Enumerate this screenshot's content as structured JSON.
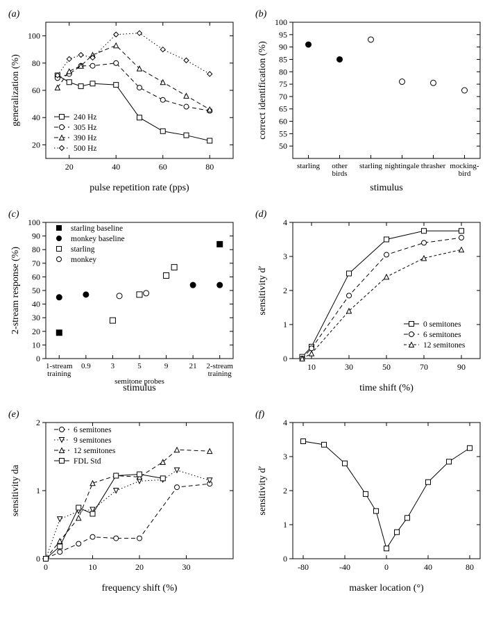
{
  "figure": {
    "font_family": "Times New Roman, serif",
    "background_color": "#ffffff",
    "axis_color": "#000000",
    "axis_width": 1,
    "tick_len": 5,
    "panel_labels": [
      "(a)",
      "(b)",
      "(c)",
      "(d)",
      "(e)",
      "(f)"
    ],
    "panel_label_fontsize": 14,
    "panel_label_style": "italic",
    "axis_label_fontsize": 14,
    "tick_label_fontsize": 12
  },
  "a": {
    "type": "line-scatter",
    "xlabel": "pulse repetition rate (pps)",
    "ylabel": "generalization (%)",
    "xlim": [
      10,
      90
    ],
    "ylim": [
      10,
      110
    ],
    "xticks": [
      20,
      40,
      60,
      80
    ],
    "yticks": [
      20,
      40,
      60,
      80,
      100
    ],
    "legend_pos": "lower-left",
    "series": [
      {
        "label": "240 Hz",
        "marker": "square",
        "color": "#000000",
        "dash": "solid",
        "x": [
          15,
          20,
          25,
          30,
          40,
          50,
          60,
          70,
          80
        ],
        "y": [
          71,
          66,
          63,
          65,
          64,
          40,
          30,
          27,
          23
        ]
      },
      {
        "label": "305 Hz",
        "marker": "circle",
        "color": "#000000",
        "dash": "dash",
        "x": [
          15,
          20,
          25,
          30,
          40,
          50,
          60,
          70,
          80
        ],
        "y": [
          69,
          72,
          78,
          78,
          80,
          62,
          53,
          48,
          45
        ]
      },
      {
        "label": "390 Hz",
        "marker": "triangle",
        "color": "#000000",
        "dash": "dash",
        "x": [
          15,
          20,
          25,
          30,
          40,
          50,
          60,
          70,
          80
        ],
        "y": [
          62,
          74,
          78,
          86,
          93,
          76,
          66,
          56,
          46
        ]
      },
      {
        "label": "500 Hz",
        "marker": "diamond",
        "color": "#000000",
        "dash": "dot",
        "x": [
          15,
          20,
          25,
          30,
          40,
          50,
          60,
          70,
          80
        ],
        "y": [
          71,
          83,
          86,
          84,
          101,
          102,
          90,
          82,
          72
        ]
      }
    ]
  },
  "b": {
    "type": "scatter",
    "xlabel": "stimulus",
    "ylabel": "correct identification (%)",
    "ylim": [
      45,
      100
    ],
    "yticks": [
      50,
      55,
      60,
      65,
      70,
      75,
      80,
      85,
      90,
      95,
      100
    ],
    "xcategories": [
      "starling",
      "other\nbirds",
      "starling",
      "nightingale",
      "thrasher",
      "mocking-\nbird"
    ],
    "points": [
      {
        "x": 0,
        "y": 91,
        "fill": "filled"
      },
      {
        "x": 1,
        "y": 85,
        "fill": "filled"
      },
      {
        "x": 2,
        "y": 93,
        "fill": "open"
      },
      {
        "x": 3,
        "y": 76,
        "fill": "open"
      },
      {
        "x": 4,
        "y": 75.5,
        "fill": "open"
      },
      {
        "x": 5,
        "y": 72.5,
        "fill": "open"
      }
    ],
    "marker": "circle"
  },
  "c": {
    "type": "scatter",
    "xlabel": "stimulus",
    "ylabel": "2-stream response (%)",
    "ylim": [
      0,
      100
    ],
    "yticks": [
      0,
      10,
      20,
      30,
      40,
      50,
      60,
      70,
      80,
      90,
      100
    ],
    "xcategories": [
      "1-stream\ntraining",
      "0.9",
      "3",
      "5",
      "9",
      "21",
      "2-stream\ntraining"
    ],
    "subheader": "semitone probes",
    "legend": [
      {
        "marker": "filled-square",
        "label": "starling baseline"
      },
      {
        "marker": "filled-circle",
        "label": "monkey baseline"
      },
      {
        "marker": "open-square",
        "label": "starling"
      },
      {
        "marker": "open-circle",
        "label": "monkey"
      }
    ],
    "points": [
      {
        "x": 0,
        "y": 45,
        "marker": "filled-circle"
      },
      {
        "x": 0,
        "y": 19,
        "marker": "filled-square"
      },
      {
        "x": 1,
        "y": 47,
        "marker": "filled-circle"
      },
      {
        "x": 2,
        "y": 28,
        "marker": "open-square"
      },
      {
        "x": 2.25,
        "y": 46,
        "marker": "open-circle"
      },
      {
        "x": 3,
        "y": 47,
        "marker": "open-square"
      },
      {
        "x": 3.25,
        "y": 48,
        "marker": "open-circle"
      },
      {
        "x": 4,
        "y": 61,
        "marker": "open-square"
      },
      {
        "x": 4.3,
        "y": 67,
        "marker": "open-square"
      },
      {
        "x": 5,
        "y": 54,
        "marker": "filled-circle"
      },
      {
        "x": 6,
        "y": 84,
        "marker": "filled-square"
      },
      {
        "x": 6,
        "y": 54,
        "marker": "filled-circle"
      }
    ]
  },
  "d": {
    "type": "line-scatter",
    "xlabel": "time shift (%)",
    "ylabel": "sensitivity d′",
    "xlim": [
      0,
      100
    ],
    "ylim": [
      0,
      4
    ],
    "xticks": [
      10,
      30,
      50,
      70,
      90
    ],
    "yticks": [
      0,
      1,
      2,
      3,
      4
    ],
    "legend_pos": "lower-right",
    "series": [
      {
        "label": "0 semitones",
        "marker": "square",
        "dash": "solid",
        "x": [
          5,
          10,
          30,
          50,
          70,
          90
        ],
        "y": [
          0.05,
          0.35,
          2.5,
          3.5,
          3.75,
          3.75
        ]
      },
      {
        "label": "6 semitones",
        "marker": "circle",
        "dash": "dash",
        "x": [
          5,
          10,
          30,
          50,
          70,
          90
        ],
        "y": [
          0.0,
          0.3,
          1.85,
          3.05,
          3.4,
          3.55
        ]
      },
      {
        "label": "12 semitones",
        "marker": "triangle",
        "dash": "dash-short",
        "x": [
          5,
          10,
          30,
          50,
          70,
          90
        ],
        "y": [
          0.0,
          0.15,
          1.4,
          2.4,
          2.95,
          3.2
        ]
      }
    ]
  },
  "e": {
    "type": "line-scatter",
    "xlabel": "frequency shift (%)",
    "ylabel": "sensitivity da",
    "xlim": [
      0,
      40
    ],
    "ylim": [
      0,
      2
    ],
    "xticks": [
      0,
      10,
      20,
      30
    ],
    "yticks": [
      0,
      1,
      2
    ],
    "legend_pos": "upper-left",
    "series": [
      {
        "label": "6 semitones",
        "marker": "circle",
        "dash": "dash",
        "x": [
          0,
          3,
          7,
          10,
          15,
          20,
          28,
          35
        ],
        "y": [
          0,
          0.1,
          0.22,
          0.32,
          0.3,
          0.3,
          1.05,
          1.1
        ]
      },
      {
        "label": "9 semitones",
        "marker": "triangle-down",
        "dash": "dot",
        "x": [
          0,
          3,
          7,
          10,
          15,
          20,
          25,
          28,
          35
        ],
        "y": [
          0,
          0.58,
          0.7,
          0.72,
          1.0,
          1.14,
          1.16,
          1.3,
          1.15
        ]
      },
      {
        "label": "12 semitones",
        "marker": "triangle",
        "dash": "dash",
        "x": [
          0,
          3,
          7,
          10,
          15,
          20,
          25,
          28,
          35
        ],
        "y": [
          0,
          0.26,
          0.6,
          1.11,
          1.22,
          1.2,
          1.42,
          1.6,
          1.58
        ]
      },
      {
        "label": "FDL Std",
        "marker": "square",
        "dash": "solid",
        "x": [
          0,
          3,
          7,
          10,
          15,
          20,
          25
        ],
        "y": [
          0,
          0.18,
          0.75,
          0.66,
          1.22,
          1.24,
          1.18
        ]
      }
    ]
  },
  "f": {
    "type": "line-scatter",
    "xlabel": "masker location (°)",
    "ylabel": "sensitivity d′",
    "xlim": [
      -90,
      90
    ],
    "ylim": [
      0,
      4
    ],
    "xticks": [
      -80,
      -40,
      0,
      40,
      80
    ],
    "yticks": [
      0,
      1,
      2,
      3,
      4
    ],
    "series": [
      {
        "marker": "square",
        "dash": "solid",
        "x": [
          -80,
          -60,
          -40,
          -20,
          -10,
          0,
          10,
          20,
          40,
          60,
          80
        ],
        "y": [
          3.45,
          3.35,
          2.8,
          1.9,
          1.4,
          0.3,
          0.78,
          1.2,
          2.25,
          2.85,
          3.25
        ]
      }
    ]
  }
}
